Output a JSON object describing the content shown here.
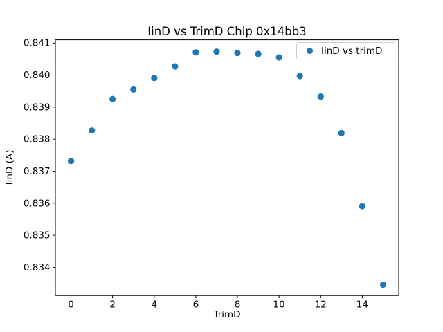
{
  "figure": {
    "background": "#ffffff",
    "text_color": "#000000"
  },
  "chart_data": {
    "type": "scatter",
    "title": "IinD vs TrimD Chip 0x14bb3",
    "xlabel": "TrimD",
    "ylabel": "IinD (A)",
    "legend": {
      "label": "IinD vs trimD",
      "position": "upper right"
    },
    "x": [
      0,
      1,
      2,
      3,
      4,
      5,
      6,
      7,
      8,
      9,
      10,
      11,
      12,
      13,
      14,
      15
    ],
    "y": [
      0.83732,
      0.83827,
      0.83925,
      0.83955,
      0.83991,
      0.84027,
      0.84071,
      0.84073,
      0.84069,
      0.84066,
      0.84055,
      0.83997,
      0.83933,
      0.83819,
      0.83591,
      0.83346
    ],
    "xlim": [
      -0.75,
      15.75
    ],
    "ylim": [
      0.83312,
      0.8411
    ],
    "xticks": [
      0,
      2,
      4,
      6,
      8,
      10,
      12,
      14
    ],
    "yticks": [
      0.834,
      0.835,
      0.836,
      0.837,
      0.838,
      0.839,
      0.84,
      0.841
    ],
    "ytick_decimals": 3,
    "grid": false,
    "marker": {
      "color": "#1f77b4",
      "radius": 4.6
    },
    "axes_color": "#000000"
  }
}
